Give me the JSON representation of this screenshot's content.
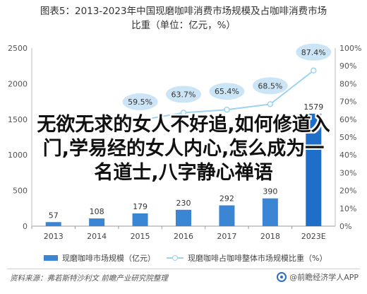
{
  "title": {
    "line1": "图表5：2013-2023年中国现磨咖啡消费市场规模及占咖啡消费市场",
    "line2": "比重（单位：亿元，%）"
  },
  "chart_data": {
    "type": "bar",
    "categories": [
      "2013",
      "2014",
      "2015",
      "2016",
      "2017",
      "2018",
      "2023E"
    ],
    "series": [
      {
        "name": "现磨咖啡市场规模（亿元）",
        "type": "bar",
        "axis": "left",
        "values": [
          57,
          108,
          179,
          230,
          292,
          390,
          1579
        ],
        "labels": [
          "57",
          "108",
          "179",
          "230",
          "292",
          "390",
          "1579"
        ]
      },
      {
        "name": "现磨咖啡占咖啡整体市场规模比重（%）",
        "type": "line",
        "axis": "right",
        "values": [
          null,
          null,
          59.5,
          63.7,
          65.4,
          68.5,
          87.4
        ],
        "labels": [
          "",
          "",
          "59.5%",
          "63.7%",
          "65.4%",
          "68.5%",
          "87.4%"
        ]
      }
    ],
    "y_left": {
      "lim": [
        0,
        2500
      ],
      "ticks": [
        "0",
        "500",
        "1000",
        "1500",
        "2000",
        "2500"
      ]
    },
    "y_right": {
      "lim": [
        0,
        100
      ],
      "ticks": [
        "0%",
        "10%",
        "20%",
        "30%",
        "40%",
        "50%",
        "60%",
        "70%",
        "80%",
        "90%",
        "100%"
      ]
    },
    "grid": false,
    "legend": "bottom",
    "colors": {
      "bar": "#3a86d4",
      "bar_highlight": "#1f6fc9",
      "line": "#9dd3f0",
      "label_bubble": "#cbe5f7"
    }
  },
  "legend": {
    "bar_label": "现磨咖啡市场规模（亿元）",
    "line_label": "现磨咖啡占咖啡整体市场规模比重（%）"
  },
  "footer": {
    "source": "资料来源：弗若斯特沙利文 前瞻产业研究院整理",
    "brand": "@前瞻经济学人APP"
  },
  "overlay": {
    "line1": "无欲无求的女人不好追,如何修道入",
    "line2": "门,学易经的女人内心,怎么成为一",
    "line3": "名道士,八字静心禅语"
  }
}
